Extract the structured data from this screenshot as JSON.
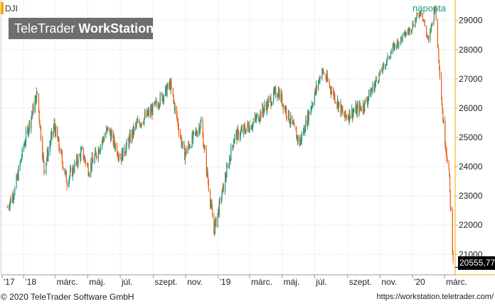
{
  "symbol": "DJI",
  "period_label": "naponta",
  "watermark": {
    "brand": "TeleTrader",
    "product": "WorkStation"
  },
  "footer": {
    "copyright": "© 2020 TeleTrader Software GmbH",
    "url": "https://workstation.teletrader.com/"
  },
  "last_price": "20555,77",
  "colors": {
    "up": "#1b9b84",
    "down": "#e8651a",
    "axis_frame": "#ffa500",
    "grid": "#d8d8d8"
  },
  "chart_data": {
    "type": "candlestick",
    "title": "",
    "xlabel": "",
    "ylabel": "",
    "ylim": [
      20300,
      29700
    ],
    "y_ticks": [
      21000,
      22000,
      23000,
      24000,
      25000,
      26000,
      27000,
      28000,
      29000
    ],
    "y_tick_labels": [
      "21000",
      "22000",
      "23000",
      "24000",
      "25000",
      "26000",
      "27000",
      "28000",
      "29000"
    ],
    "x_ticks": [
      {
        "label": "'17",
        "date": "2017-12"
      },
      {
        "label": "'18",
        "date": "2018-01"
      },
      {
        "label": "márc.",
        "date": "2018-03"
      },
      {
        "label": "máj.",
        "date": "2018-05"
      },
      {
        "label": "júl.",
        "date": "2018-07"
      },
      {
        "label": "szept.",
        "date": "2018-09"
      },
      {
        "label": "nov.",
        "date": "2018-11"
      },
      {
        "label": "'19",
        "date": "2019-01"
      },
      {
        "label": "márc.",
        "date": "2019-03"
      },
      {
        "label": "máj.",
        "date": "2019-05"
      },
      {
        "label": "júl.",
        "date": "2019-07"
      },
      {
        "label": "szept.",
        "date": "2019-09"
      },
      {
        "label": "nov.",
        "date": "2019-11"
      },
      {
        "label": "'20",
        "date": "2020-01"
      },
      {
        "label": "márc.",
        "date": "2020-03"
      }
    ],
    "approx_closes": [
      {
        "date": "2017-12-01",
        "value": 22600
      },
      {
        "date": "2017-12-15",
        "value": 23200
      },
      {
        "date": "2018-01-02",
        "value": 24800
      },
      {
        "date": "2018-01-26",
        "value": 26500
      },
      {
        "date": "2018-02-08",
        "value": 23900
      },
      {
        "date": "2018-02-27",
        "value": 25400
      },
      {
        "date": "2018-03-23",
        "value": 23500
      },
      {
        "date": "2018-04-20",
        "value": 24500
      },
      {
        "date": "2018-05-03",
        "value": 23900
      },
      {
        "date": "2018-06-08",
        "value": 25300
      },
      {
        "date": "2018-07-02",
        "value": 24300
      },
      {
        "date": "2018-07-31",
        "value": 25400
      },
      {
        "date": "2018-08-31",
        "value": 25950
      },
      {
        "date": "2018-10-03",
        "value": 26800
      },
      {
        "date": "2018-10-29",
        "value": 24400
      },
      {
        "date": "2018-11-30",
        "value": 25500
      },
      {
        "date": "2018-12-24",
        "value": 21800
      },
      {
        "date": "2019-01-31",
        "value": 25000
      },
      {
        "date": "2019-03-08",
        "value": 25500
      },
      {
        "date": "2019-04-23",
        "value": 26600
      },
      {
        "date": "2019-06-03",
        "value": 24800
      },
      {
        "date": "2019-07-15",
        "value": 27300
      },
      {
        "date": "2019-08-26",
        "value": 25700
      },
      {
        "date": "2019-10-02",
        "value": 26100
      },
      {
        "date": "2019-11-27",
        "value": 28100
      },
      {
        "date": "2019-12-27",
        "value": 28700
      },
      {
        "date": "2020-01-17",
        "value": 29350
      },
      {
        "date": "2020-01-31",
        "value": 28250
      },
      {
        "date": "2020-02-12",
        "value": 29550
      },
      {
        "date": "2020-02-28",
        "value": 25400
      },
      {
        "date": "2020-03-09",
        "value": 23850
      },
      {
        "date": "2020-03-18",
        "value": 20555.77
      }
    ]
  }
}
